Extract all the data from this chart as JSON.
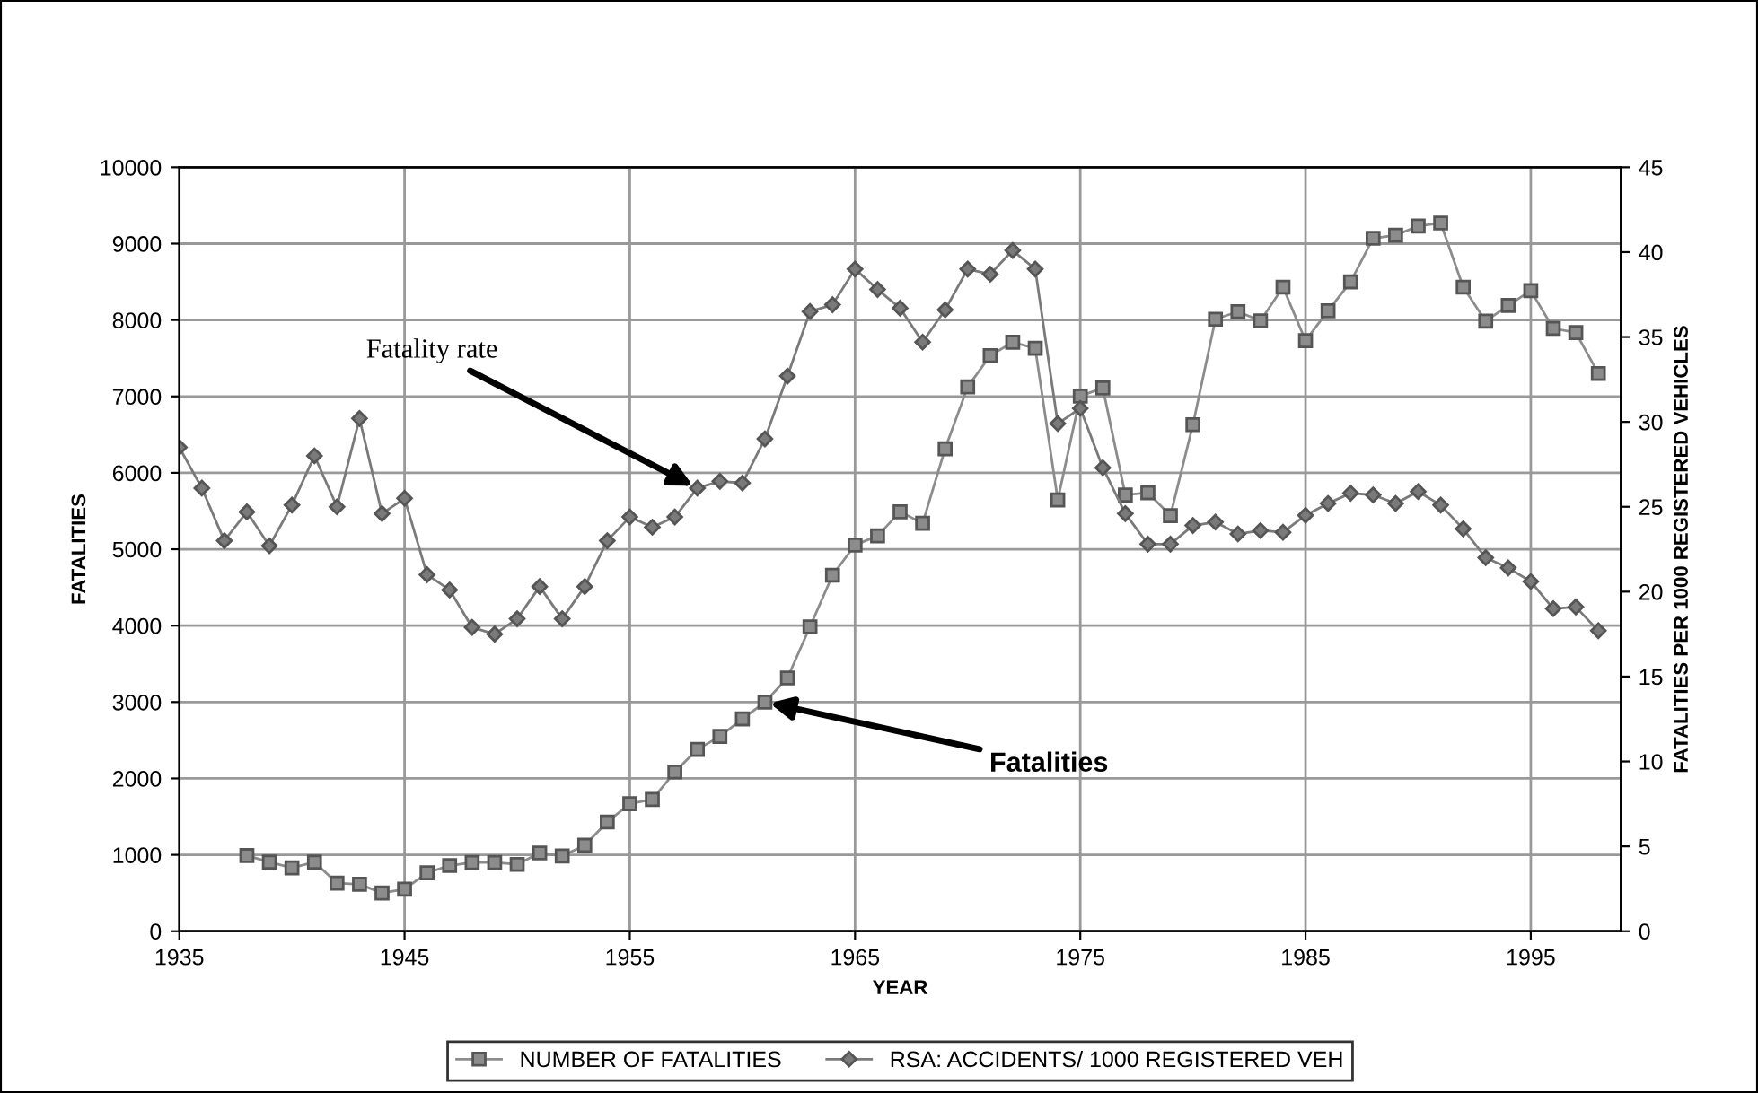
{
  "chart_data": {
    "type": "line",
    "xlabel": "YEAR",
    "ylabel": "FATALITIES",
    "y2label": "FATALITIES PER 1000 REGISTERED VEHICLES",
    "xlim": [
      1935,
      1999
    ],
    "xticks": [
      1935,
      1945,
      1955,
      1965,
      1975,
      1985,
      1995
    ],
    "ylim": [
      0,
      10000
    ],
    "yticks": [
      0,
      1000,
      2000,
      3000,
      4000,
      5000,
      6000,
      7000,
      8000,
      9000,
      10000
    ],
    "y2lim": [
      0,
      45
    ],
    "y2ticks": [
      0,
      5,
      10,
      15,
      20,
      25,
      30,
      35,
      40,
      45
    ],
    "grid": true,
    "legend": "bottom",
    "line_style": "solid",
    "series": [
      {
        "name": "NUMBER OF FATALITIES",
        "color": "#8c8c8c",
        "marker": "square",
        "x": [
          1938,
          1939,
          1940,
          1941,
          1942,
          1943,
          1944,
          1945,
          1946,
          1947,
          1948,
          1949,
          1950,
          1951,
          1952,
          1953,
          1954,
          1955,
          1956,
          1957,
          1958,
          1959,
          1960,
          1961,
          1962,
          1963,
          1964,
          1965,
          1966,
          1967,
          1968,
          1969,
          1970,
          1971,
          1972,
          1973,
          1974,
          1975,
          1976,
          1977,
          1978,
          1979,
          1980,
          1981,
          1982,
          1983,
          1984,
          1985,
          1986,
          1987,
          1988,
          1989,
          1990,
          1991,
          1992,
          1993,
          1994,
          1995,
          1996,
          1997,
          1998
        ],
        "values": [
          990,
          905,
          830,
          905,
          630,
          615,
          500,
          550,
          765,
          860,
          900,
          900,
          875,
          1025,
          985,
          1125,
          1430,
          1670,
          1725,
          2085,
          2380,
          2550,
          2780,
          3000,
          3315,
          3985,
          4660,
          5055,
          5175,
          5490,
          5340,
          6315,
          7125,
          7535,
          7710,
          7630,
          5645,
          7005,
          7110,
          5710,
          5740,
          5440,
          6630,
          8010,
          8110,
          7990,
          8430,
          7730,
          8120,
          8500,
          9070,
          9110,
          9230,
          9270,
          8430,
          7985,
          8190,
          8385,
          7890,
          7835,
          7300
        ]
      },
      {
        "name": "RSA: ACCIDENTS/ 1000 REGISTERED VEH",
        "color": "#7a7a7a",
        "marker": "diamond",
        "axis": "y2",
        "x": [
          1935,
          1936,
          1937,
          1938,
          1939,
          1940,
          1941,
          1942,
          1943,
          1944,
          1945,
          1946,
          1947,
          1948,
          1949,
          1950,
          1951,
          1952,
          1953,
          1954,
          1955,
          1956,
          1957,
          1958,
          1959,
          1960,
          1961,
          1962,
          1963,
          1964,
          1965,
          1966,
          1967,
          1968,
          1969,
          1970,
          1971,
          1972,
          1973,
          1974,
          1975,
          1976,
          1977,
          1978,
          1979,
          1980,
          1981,
          1982,
          1983,
          1984,
          1985,
          1986,
          1987,
          1988,
          1989,
          1990,
          1991,
          1992,
          1993,
          1994,
          1995,
          1996,
          1997,
          1998
        ],
        "values": [
          28.5,
          26.1,
          23.0,
          24.7,
          22.7,
          25.1,
          28.0,
          25.0,
          30.2,
          24.6,
          25.5,
          21.0,
          20.1,
          17.9,
          17.5,
          18.4,
          20.3,
          18.4,
          20.3,
          23.0,
          24.4,
          23.8,
          24.4,
          26.1,
          26.5,
          26.4,
          29.0,
          32.7,
          36.5,
          36.9,
          39.0,
          37.8,
          36.7,
          34.7,
          36.6,
          39.0,
          38.7,
          40.1,
          39.0,
          29.9,
          30.8,
          27.3,
          24.6,
          22.8,
          22.8,
          23.9,
          24.1,
          23.4,
          23.6,
          23.5,
          24.5,
          25.2,
          25.8,
          25.7,
          25.2,
          25.9,
          25.1,
          23.7,
          22.0,
          21.4,
          20.6,
          19.0,
          19.1,
          17.7
        ]
      }
    ],
    "annotations": [
      {
        "text": "Fatality rate",
        "x": 1958,
        "y": 5800
      },
      {
        "text": "Fatalities",
        "x": 1961,
        "y": 3000
      }
    ]
  }
}
